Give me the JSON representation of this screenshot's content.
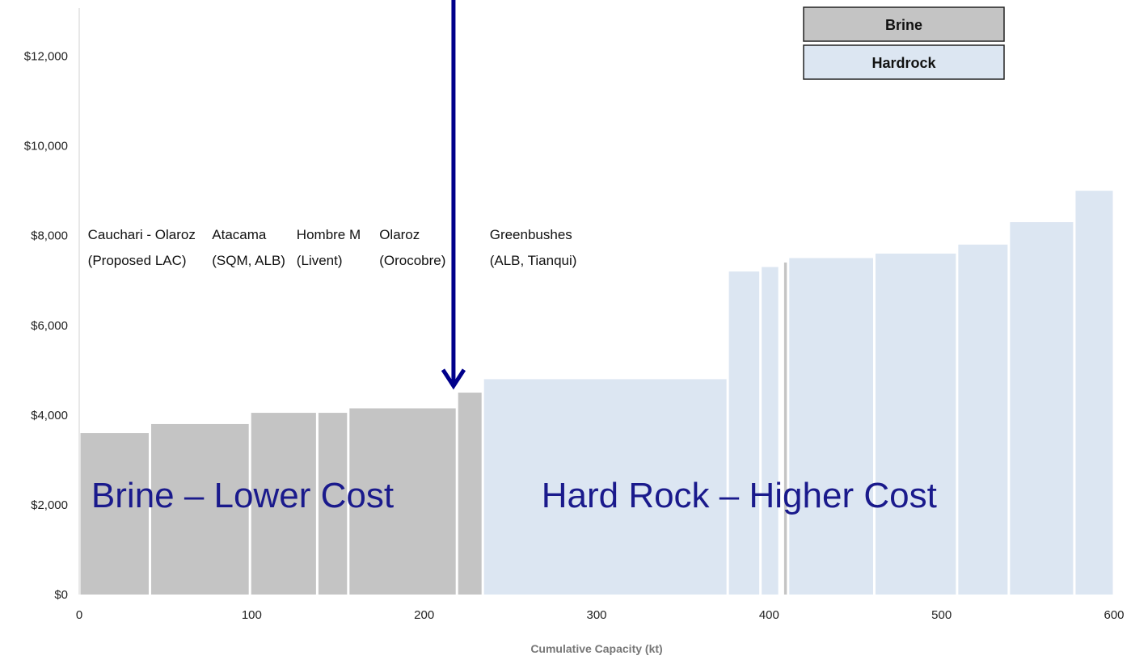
{
  "chart_data": {
    "type": "bar",
    "subtype": "cost-curve",
    "title": "",
    "xlabel": "Cumulative Capacity (kt)",
    "ylabel": "",
    "xlim": [
      0,
      600
    ],
    "ylim": [
      0,
      13000
    ],
    "x_ticks": [
      {
        "value": 0,
        "label": "0"
      },
      {
        "value": 100,
        "label": "100"
      },
      {
        "value": 200,
        "label": "200"
      },
      {
        "value": 300,
        "label": "300"
      },
      {
        "value": 400,
        "label": "400"
      },
      {
        "value": 500,
        "label": "500"
      },
      {
        "value": 600,
        "label": "600"
      }
    ],
    "y_ticks": [
      {
        "value": 0,
        "label": "$0"
      },
      {
        "value": 2000,
        "label": "$2,000"
      },
      {
        "value": 4000,
        "label": "$4,000"
      },
      {
        "value": 6000,
        "label": "$6,000"
      },
      {
        "value": 8000,
        "label": "$8,000"
      },
      {
        "value": 10000,
        "label": "$10,000"
      },
      {
        "value": 12000,
        "label": "$12,000"
      }
    ],
    "grid": false,
    "legend": {
      "position": "top-right",
      "entries": [
        {
          "label": "Brine",
          "color": "#c4c4c4"
        },
        {
          "label": "Hardrock",
          "color": "#dce6f2"
        }
      ]
    },
    "series": [
      {
        "name": "Brine",
        "color": "#c4c4c4",
        "bars": [
          {
            "x0": 0,
            "x1": 41,
            "value": 3600
          },
          {
            "x0": 41,
            "x1": 99,
            "value": 3800
          },
          {
            "x0": 99,
            "x1": 138,
            "value": 4050
          },
          {
            "x0": 138,
            "x1": 156,
            "value": 4050
          },
          {
            "x0": 156,
            "x1": 219,
            "value": 4150
          },
          {
            "x0": 219,
            "x1": 234,
            "value": 4500
          },
          {
            "x0": 408,
            "x1": 411,
            "value": 7400
          }
        ]
      },
      {
        "name": "Hardrock",
        "color": "#dce6f2",
        "bars": [
          {
            "x0": 234,
            "x1": 376,
            "value": 4800
          },
          {
            "x0": 376,
            "x1": 395,
            "value": 7200
          },
          {
            "x0": 395,
            "x1": 406,
            "value": 7300
          },
          {
            "x0": 411,
            "x1": 461,
            "value": 7500
          },
          {
            "x0": 461,
            "x1": 509,
            "value": 7600
          },
          {
            "x0": 509,
            "x1": 539,
            "value": 7800
          },
          {
            "x0": 539,
            "x1": 577,
            "value": 8300
          },
          {
            "x0": 577,
            "x1": 600,
            "value": 9000
          }
        ]
      }
    ],
    "project_labels": [
      {
        "x": 5,
        "line1": "Cauchari - Olaroz",
        "line2": "(Proposed LAC)"
      },
      {
        "x": 77,
        "line1": "Atacama",
        "line2": "(SQM, ALB)"
      },
      {
        "x": 126,
        "line1": "Hombre M",
        "line2": "(Livent)"
      },
      {
        "x": 174,
        "line1": "Olaroz",
        "line2": "(Orocobre)"
      },
      {
        "x": 238,
        "line1": "Greenbushes",
        "line2": "(ALB, Tianqui)"
      }
    ],
    "region_labels": [
      {
        "text": "Brine – Lower Cost",
        "x": 7,
        "y": 2200
      },
      {
        "text": "Hard Rock – Higher Cost",
        "x": 268,
        "y": 2200
      }
    ],
    "arrow": {
      "x": 217,
      "y_from": 13000,
      "y_to": 4650,
      "color": "#00008b"
    }
  }
}
